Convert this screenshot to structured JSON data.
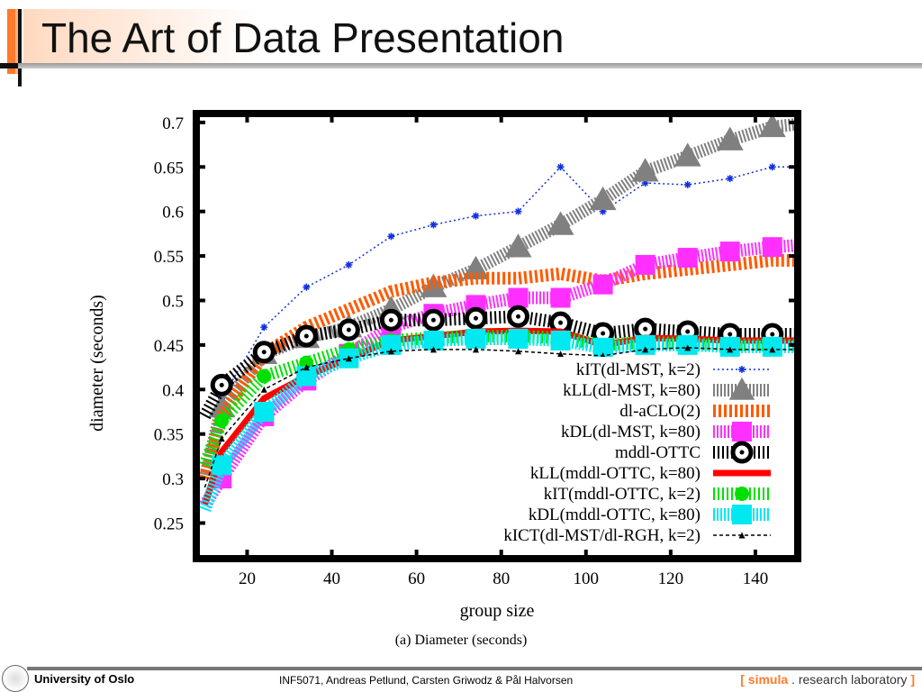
{
  "slide": {
    "title": "The Art of Data Presentation",
    "caption": "(a)  Diameter (seconds)"
  },
  "footer": {
    "university": "University of Oslo",
    "credit": "INF5071, Andreas Petlund, Carsten Griwodz & Pål Halvorsen",
    "lab_open": "[",
    "lab_name": "simula",
    "lab_dot": ".",
    "lab_rest": "research laboratory",
    "lab_close": "]"
  },
  "chart_data": {
    "type": "line",
    "xlabel": "group size",
    "ylabel": "diameter (seconds)",
    "xlim": [
      8,
      150
    ],
    "ylim": [
      0.21,
      0.71
    ],
    "xticks": [
      20,
      40,
      60,
      80,
      100,
      120,
      140
    ],
    "yticks": [
      0.25,
      0.3,
      0.35,
      0.4,
      0.45,
      0.5,
      0.55,
      0.6,
      0.65,
      0.7
    ],
    "grid": false,
    "legend": "bottom-right",
    "x": [
      10,
      14,
      24,
      34,
      44,
      54,
      64,
      74,
      84,
      94,
      104,
      114,
      124,
      134,
      144,
      150
    ],
    "series": [
      {
        "name": "kIT(dl-MST, k=2)",
        "color": "#1030e0",
        "style": "dotted-star",
        "values": [
          0.32,
          0.39,
          0.47,
          0.515,
          0.54,
          0.572,
          0.585,
          0.595,
          0.6,
          0.65,
          0.6,
          0.632,
          0.63,
          0.637,
          0.65,
          0.65
        ]
      },
      {
        "name": "kLL(dl-MST, k=80)",
        "color": "#808080",
        "style": "hatched-triangle",
        "values": [
          0.3,
          0.38,
          0.44,
          0.458,
          0.47,
          0.49,
          0.515,
          0.535,
          0.56,
          0.585,
          0.613,
          0.645,
          0.662,
          0.68,
          0.695,
          0.698
        ]
      },
      {
        "name": "dl-aCLO(2)",
        "color": "#ff5a00",
        "style": "hatched",
        "values": [
          0.3,
          0.37,
          0.44,
          0.47,
          0.49,
          0.51,
          0.52,
          0.525,
          0.525,
          0.53,
          0.522,
          0.53,
          0.535,
          0.54,
          0.545,
          0.545
        ]
      },
      {
        "name": "kDL(dl-MST, k=80)",
        "color": "#ff30ff",
        "style": "hatched-square",
        "values": [
          0.27,
          0.3,
          0.37,
          0.41,
          0.44,
          0.47,
          0.485,
          0.495,
          0.503,
          0.503,
          0.518,
          0.54,
          0.548,
          0.555,
          0.56,
          0.562
        ]
      },
      {
        "name": "mddl-OTTC",
        "color": "#000000",
        "style": "hatched-circle",
        "values": [
          0.37,
          0.405,
          0.442,
          0.46,
          0.467,
          0.478,
          0.478,
          0.48,
          0.482,
          0.475,
          0.463,
          0.468,
          0.465,
          0.462,
          0.462,
          0.462
        ]
      },
      {
        "name": "kLL(mddl-OTTC, k=80)",
        "color": "#ff0000",
        "style": "thick",
        "values": [
          0.27,
          0.33,
          0.39,
          0.415,
          0.435,
          0.455,
          0.46,
          0.465,
          0.466,
          0.465,
          0.45,
          0.458,
          0.457,
          0.455,
          0.455,
          0.455
        ]
      },
      {
        "name": "kIT(mddl-OTTC, k=2)",
        "color": "#00e000",
        "style": "hatched-circle",
        "values": [
          0.315,
          0.365,
          0.415,
          0.43,
          0.445,
          0.455,
          0.458,
          0.46,
          0.46,
          0.458,
          0.45,
          0.453,
          0.452,
          0.45,
          0.45,
          0.45
        ]
      },
      {
        "name": "kDL(mddl-OTTC, k=80)",
        "color": "#00e8f0",
        "style": "hatched-square",
        "values": [
          0.265,
          0.315,
          0.375,
          0.415,
          0.435,
          0.45,
          0.455,
          0.457,
          0.457,
          0.455,
          0.447,
          0.45,
          0.45,
          0.448,
          0.448,
          0.448
        ]
      },
      {
        "name": "kICT(dl-MST/dl-RGH, k=2)",
        "color": "#000000",
        "style": "dashed-triangle",
        "values": [
          0.29,
          0.345,
          0.4,
          0.425,
          0.435,
          0.443,
          0.445,
          0.445,
          0.443,
          0.44,
          0.438,
          0.445,
          0.447,
          0.445,
          0.445,
          0.445
        ]
      }
    ]
  }
}
